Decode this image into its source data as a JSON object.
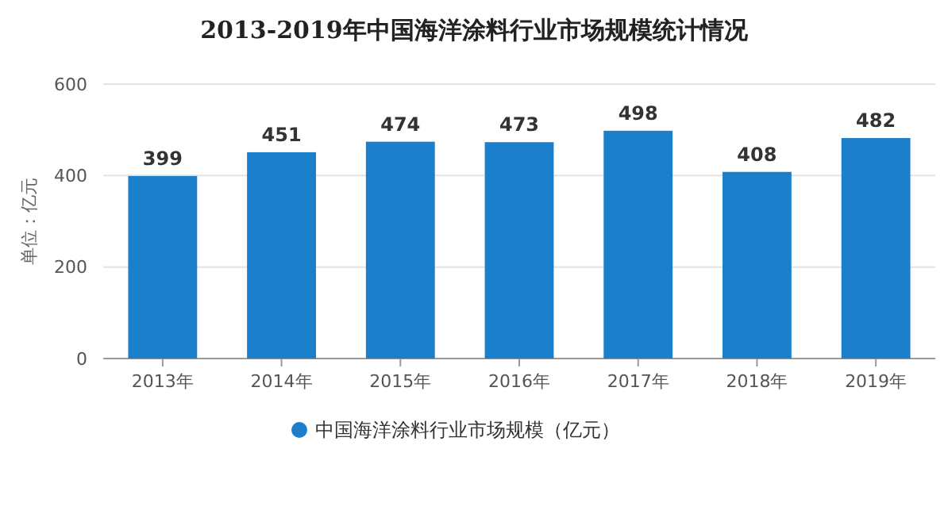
{
  "chart_data": {
    "type": "bar",
    "title": "2013-2019年中国海洋涂料行业市场规模统计情况",
    "ylabel": "单位：亿元",
    "categories": [
      "2013年",
      "2014年",
      "2015年",
      "2016年",
      "2017年",
      "2018年",
      "2019年"
    ],
    "series": [
      {
        "name": "中国海洋涂料行业市场规模（亿元）",
        "color": "#1b7fcc",
        "values": [
          399,
          451,
          474,
          473,
          498,
          408,
          482
        ]
      }
    ],
    "ylim": [
      0,
      600
    ],
    "yticks": [
      0,
      200,
      400,
      600
    ],
    "grid": "y",
    "legend": "bottom",
    "data_labels": true
  }
}
